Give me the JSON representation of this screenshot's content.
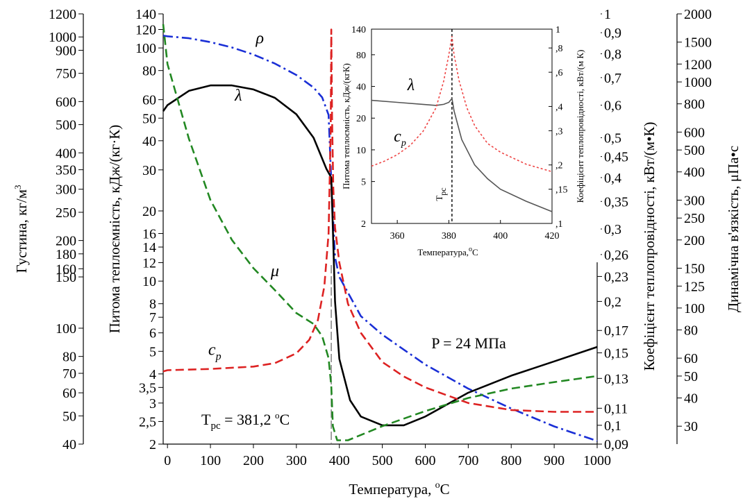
{
  "chart_data": {
    "type": "line",
    "annotation": "P = 24 МПа",
    "tpc_label": "T",
    "tpc_subscript": "pc",
    "tpc_value_prefix": "= 381,2 ",
    "tpc_value_sup": "o",
    "tpc_value_suffix": "C",
    "pseudocritical_temperature": 381.2,
    "x_axis": {
      "label": "Температура, ",
      "label_sup": "o",
      "label_suffix": "C",
      "range": [
        -10,
        1000
      ],
      "ticks": [
        "0",
        "100",
        "200",
        "300",
        "400",
        "500",
        "600",
        "700",
        "800",
        "900",
        "1000"
      ]
    },
    "axes": {
      "density": {
        "label": "Густина, кг/м",
        "label_sup": "3",
        "scale": "log",
        "range": [
          40,
          1200
        ],
        "ticks": [
          "40",
          "50",
          "60",
          "70",
          "80",
          "100",
          "150",
          "160",
          "180",
          "200",
          "250",
          "300",
          "350",
          "400",
          "500",
          "600",
          "750",
          "900",
          "1000",
          "1200"
        ]
      },
      "specific_heat": {
        "label": "Питома теплоємність, кДж/(кг·К)",
        "scale": "log",
        "range": [
          2,
          140
        ],
        "ticks": [
          "2",
          "2,5",
          "3",
          "3,5",
          "4",
          "5",
          "6",
          "7",
          "8",
          "10",
          "12",
          "14",
          "16",
          "20",
          "30",
          "40",
          "50",
          "60",
          "80",
          "100",
          "120",
          "140"
        ]
      },
      "thermal_conductivity": {
        "label": "Коефіцієнт теплопровідності, кВт/(м•К)",
        "scale": "log",
        "range": [
          0.09,
          1
        ],
        "ticks": [
          "0,09",
          "0,1",
          "0,11",
          "0,13",
          "0,15",
          "0,17",
          "0,2",
          "0,23",
          "0,26",
          "0,3",
          "0,35",
          "0,4",
          "0,45",
          "0,5",
          "0,6",
          "0,7",
          "0,8",
          "0,9",
          "1"
        ]
      },
      "viscosity": {
        "label": "Динамічна в'язкість,  μПа•с",
        "scale": "log",
        "range": [
          25,
          2000
        ],
        "ticks": [
          "30",
          "40",
          "50",
          "60",
          "80",
          "100",
          "125",
          "150",
          "200",
          "250",
          "300",
          "400",
          "500",
          "600",
          "800",
          "1000",
          "1200",
          "1500",
          "2000"
        ]
      }
    },
    "series": [
      {
        "name": "ρ",
        "axis": "density",
        "color": "#1a2fd6",
        "dash": "dash-dot",
        "x": [
          -10,
          0,
          50,
          100,
          150,
          200,
          250,
          300,
          340,
          360,
          375,
          381.2,
          390,
          400,
          450,
          500,
          600,
          700,
          800,
          900,
          1000
        ],
        "y": [
          1010,
          1005,
          990,
          960,
          920,
          870,
          810,
          740,
          670,
          620,
          540,
          320,
          175,
          150,
          110,
          95,
          75,
          62,
          53,
          46,
          41
        ]
      },
      {
        "name": "λ",
        "axis": "thermal_conductivity",
        "color": "#000000",
        "dash": "solid",
        "x": [
          -10,
          0,
          50,
          100,
          150,
          200,
          250,
          300,
          340,
          370,
          381.2,
          385,
          390,
          400,
          425,
          450,
          500,
          550,
          600,
          700,
          800,
          900,
          1000
        ],
        "y": [
          0.58,
          0.6,
          0.65,
          0.67,
          0.67,
          0.655,
          0.625,
          0.57,
          0.5,
          0.42,
          0.4,
          0.3,
          0.2,
          0.145,
          0.115,
          0.105,
          0.1,
          0.1,
          0.105,
          0.12,
          0.132,
          0.143,
          0.155
        ]
      },
      {
        "name": "c",
        "subscript": "p",
        "axis": "specific_heat",
        "color": "#dd2222",
        "dash": "dash",
        "x": [
          -10,
          0,
          100,
          200,
          250,
          300,
          330,
          350,
          365,
          375,
          380,
          381.2,
          383,
          386,
          390,
          400,
          420,
          450,
          500,
          550,
          600,
          700,
          800,
          900,
          1000
        ],
        "y": [
          4.1,
          4.15,
          4.2,
          4.3,
          4.45,
          4.9,
          5.6,
          6.8,
          9.5,
          16,
          45,
          120,
          50,
          25,
          17,
          12,
          8,
          6,
          4.5,
          3.9,
          3.5,
          3.0,
          2.8,
          2.75,
          2.75
        ]
      },
      {
        "name": "μ",
        "axis": "viscosity",
        "color": "#228822",
        "dash": "dash",
        "x": [
          -10,
          0,
          50,
          100,
          150,
          200,
          250,
          300,
          340,
          360,
          375,
          381.2,
          385,
          395,
          420,
          500,
          600,
          700,
          800,
          900,
          1000
        ],
        "y": [
          1800,
          1200,
          560,
          300,
          200,
          150,
          120,
          95,
          85,
          75,
          60,
          45,
          30,
          26,
          26,
          30,
          35,
          40,
          44,
          47,
          50
        ]
      }
    ],
    "inset": {
      "type": "line",
      "x_label": "Температура,",
      "x_label_sup": "o",
      "x_label_suffix": "C",
      "x_range": [
        350,
        420
      ],
      "x_ticks": [
        "360",
        "380",
        "400",
        "420"
      ],
      "left_label": "Питома теплоємність, кДж/(кгК)",
      "left_ticks": [
        "2",
        "5",
        "10",
        "20",
        "40",
        "80",
        "140"
      ],
      "left_range": [
        2,
        140
      ],
      "right_label": "Коефіцієнт теплопровідності, кВт/(м К)",
      "right_ticks": [
        ",1",
        ",15",
        ",2",
        ",3",
        ",4",
        ",6",
        ",8",
        "1"
      ],
      "right_range": [
        0.1,
        1
      ],
      "tpc_label": "T",
      "tpc_subscript": "pc",
      "series": [
        {
          "name": "λ",
          "axis": "right",
          "color": "#555555",
          "dash": "solid",
          "x": [
            350,
            360,
            370,
            375,
            378,
            380,
            381.2,
            382,
            385,
            390,
            395,
            400,
            410,
            420
          ],
          "y": [
            0.43,
            0.42,
            0.41,
            0.405,
            0.41,
            0.42,
            0.44,
            0.38,
            0.27,
            0.2,
            0.17,
            0.15,
            0.13,
            0.115
          ]
        },
        {
          "name": "c",
          "subscript": "p",
          "axis": "left",
          "color": "#ee4444",
          "dash": "dotted",
          "x": [
            350,
            355,
            360,
            365,
            370,
            375,
            378,
            380,
            381.2,
            382,
            384,
            387,
            390,
            395,
            400,
            410,
            420
          ],
          "y": [
            7,
            7.8,
            9,
            11,
            15,
            25,
            45,
            80,
            120,
            80,
            45,
            25,
            17,
            11.5,
            9.5,
            7.3,
            6.2
          ]
        }
      ]
    }
  }
}
